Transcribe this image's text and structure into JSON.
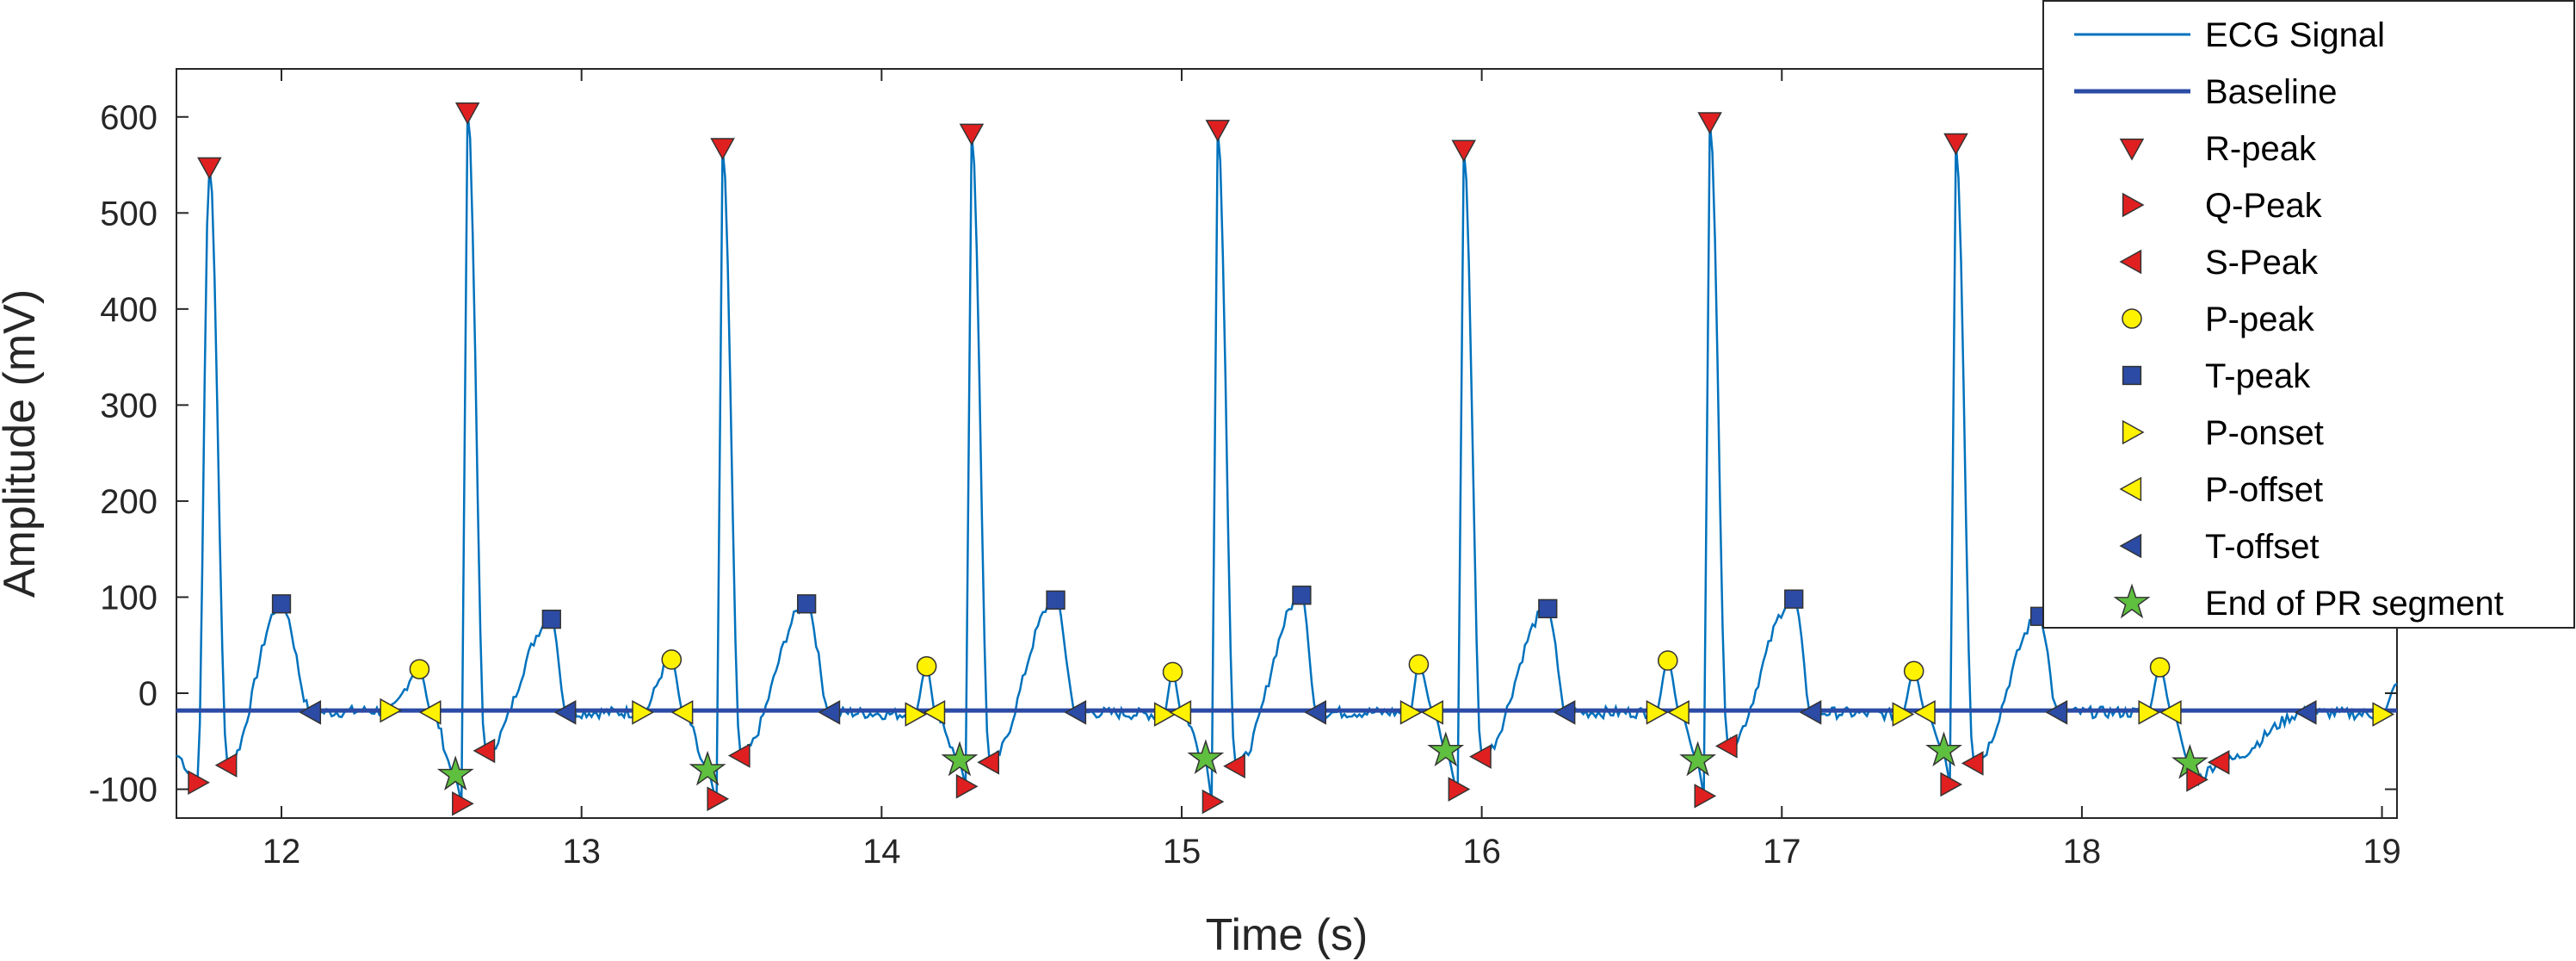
{
  "chart_data": {
    "type": "line",
    "xlabel": "Time (s)",
    "ylabel": "Amplitude (mV)",
    "xlim": [
      11.65,
      19.05
    ],
    "ylim": [
      -130,
      650
    ],
    "xticks": [
      12,
      13,
      14,
      15,
      16,
      17,
      18,
      19
    ],
    "yticks": [
      -100,
      0,
      100,
      200,
      300,
      400,
      500,
      600
    ],
    "grid": false,
    "legend_position": "top-right (overlapping the plot)",
    "colors": {
      "ecg": "#0072BD",
      "baseline": "#2B4BA5",
      "r_peak": "#E02020",
      "q_peak": "#E02020",
      "s_peak": "#E02020",
      "p_peak": "#FFF200",
      "t_peak": "#2B4BA5",
      "p_onset": "#FFF200",
      "p_offset": "#FFF200",
      "t_offset": "#2B4BA5",
      "pr_end": "#5FBF3F"
    },
    "series": [
      {
        "key": "ecg",
        "name": "ECG Signal",
        "kind": "line"
      },
      {
        "key": "baseline",
        "name": "Baseline",
        "kind": "line",
        "y": [
          -18,
          -18
        ]
      },
      {
        "key": "r_peak",
        "name": "R-peak",
        "marker": "triangle-down",
        "points": [
          [
            11.76,
            548
          ],
          [
            12.62,
            605
          ],
          [
            13.47,
            568
          ],
          [
            14.3,
            583
          ],
          [
            15.12,
            587
          ],
          [
            15.94,
            566
          ],
          [
            16.76,
            595
          ],
          [
            17.58,
            573
          ]
        ]
      },
      {
        "key": "q_peak",
        "name": "Q-Peak",
        "marker": "triangle-right",
        "points": [
          [
            11.72,
            -93
          ],
          [
            12.6,
            -115
          ],
          [
            13.45,
            -110
          ],
          [
            14.28,
            -97
          ],
          [
            15.1,
            -113
          ],
          [
            15.92,
            -100
          ],
          [
            16.74,
            -107
          ],
          [
            17.56,
            -95
          ],
          [
            18.38,
            -90
          ]
        ]
      },
      {
        "key": "s_peak",
        "name": "S-Peak",
        "marker": "triangle-left",
        "points": [
          [
            11.82,
            -75
          ],
          [
            12.68,
            -60
          ],
          [
            13.53,
            -65
          ],
          [
            14.36,
            -72
          ],
          [
            15.18,
            -76
          ],
          [
            16.0,
            -66
          ],
          [
            16.82,
            -55
          ],
          [
            17.64,
            -73
          ],
          [
            18.46,
            -72
          ]
        ]
      },
      {
        "key": "p_peak",
        "name": "P-peak",
        "marker": "circle",
        "points": [
          [
            12.46,
            25
          ],
          [
            13.3,
            35
          ],
          [
            14.15,
            28
          ],
          [
            14.97,
            22
          ],
          [
            15.79,
            30
          ],
          [
            16.62,
            34
          ],
          [
            17.44,
            23
          ],
          [
            18.26,
            27
          ]
        ]
      },
      {
        "key": "t_peak",
        "name": "T-peak",
        "marker": "square",
        "points": [
          [
            12.0,
            93
          ],
          [
            12.9,
            77
          ],
          [
            13.75,
            93
          ],
          [
            14.58,
            97
          ],
          [
            15.4,
            102
          ],
          [
            16.22,
            88
          ],
          [
            17.04,
            98
          ],
          [
            17.86,
            80
          ]
        ]
      },
      {
        "key": "p_onset",
        "name": "P-onset",
        "marker": "triangle-right",
        "points": [
          [
            12.36,
            -18
          ],
          [
            13.2,
            -20
          ],
          [
            14.11,
            -22
          ],
          [
            14.94,
            -22
          ],
          [
            15.76,
            -20
          ],
          [
            16.58,
            -20
          ],
          [
            17.4,
            -22
          ],
          [
            18.22,
            -20
          ],
          [
            19.0,
            -22
          ]
        ]
      },
      {
        "key": "p_offset",
        "name": "P-offset",
        "marker": "triangle-left",
        "points": [
          [
            12.5,
            -20
          ],
          [
            13.34,
            -20
          ],
          [
            14.18,
            -20
          ],
          [
            15.0,
            -20
          ],
          [
            15.84,
            -20
          ],
          [
            16.66,
            -20
          ],
          [
            17.48,
            -20
          ],
          [
            18.3,
            -20
          ]
        ]
      },
      {
        "key": "t_offset",
        "name": "T-offset",
        "marker": "triangle-left",
        "points": [
          [
            12.1,
            -20
          ],
          [
            12.95,
            -20
          ],
          [
            13.83,
            -20
          ],
          [
            14.65,
            -20
          ],
          [
            15.45,
            -20
          ],
          [
            16.28,
            -20
          ],
          [
            17.1,
            -20
          ],
          [
            17.92,
            -20
          ],
          [
            18.75,
            -20
          ]
        ]
      },
      {
        "key": "pr_end",
        "name": "End of PR segment",
        "marker": "star",
        "points": [
          [
            12.58,
            -85
          ],
          [
            13.42,
            -80
          ],
          [
            14.26,
            -70
          ],
          [
            15.08,
            -68
          ],
          [
            15.88,
            -60
          ],
          [
            16.72,
            -70
          ],
          [
            17.54,
            -60
          ],
          [
            18.36,
            -73
          ]
        ]
      }
    ]
  }
}
